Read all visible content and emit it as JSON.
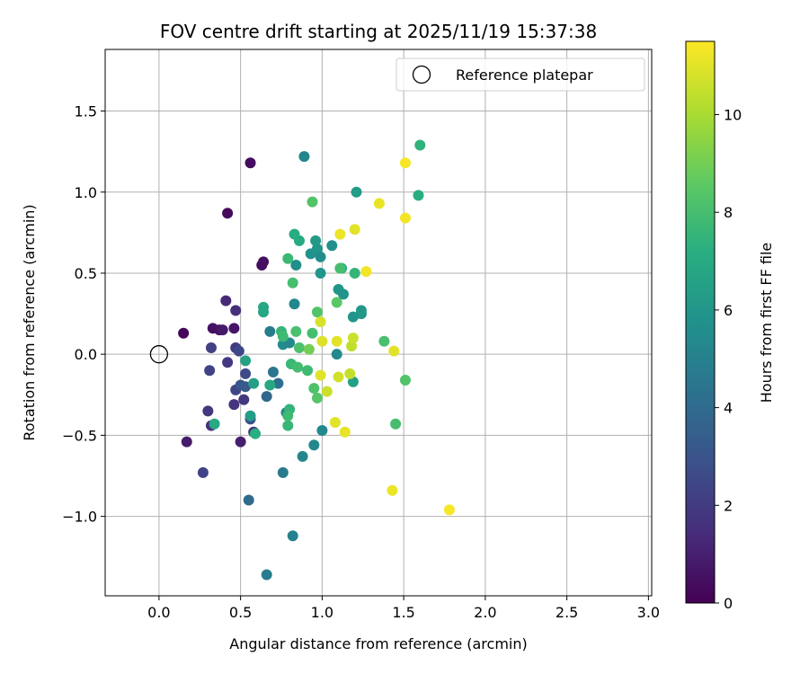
{
  "chart_data": {
    "type": "scatter",
    "title": "FOV centre drift starting at 2025/11/19 15:37:38",
    "xlabel": "Angular distance from reference (arcmin)",
    "ylabel": "Rotation from reference (arcmin)",
    "xlim": [
      -0.33,
      3.02
    ],
    "ylim": [
      -1.49,
      1.88
    ],
    "xticks": [
      0.0,
      0.5,
      1.0,
      1.5,
      2.0,
      2.5,
      3.0
    ],
    "xtick_labels": [
      "0.0",
      "0.5",
      "1.0",
      "1.5",
      "2.0",
      "2.5",
      "3.0"
    ],
    "yticks": [
      -1.0,
      -0.5,
      0.0,
      0.5,
      1.0,
      1.5
    ],
    "ytick_labels": [
      "−1.0",
      "−0.5",
      "0.0",
      "0.5",
      "1.0",
      "1.5"
    ],
    "grid": true,
    "colormap": "viridis",
    "colorbar": {
      "label": "Hours from first FF file",
      "range": [
        0,
        11.5
      ],
      "ticks": [
        0,
        2,
        4,
        6,
        8,
        10
      ],
      "tick_labels": [
        "0",
        "2",
        "4",
        "6",
        "8",
        "10"
      ]
    },
    "legend": {
      "position": "top-right",
      "entries": [
        "Reference platepar"
      ]
    },
    "reference": {
      "x": 0.0,
      "y": 0.0,
      "marker": "hollow-circle",
      "edge_color": "#000000"
    },
    "points": [
      {
        "x": 0.15,
        "y": 0.13,
        "h": 0.2
      },
      {
        "x": 0.42,
        "y": 0.87,
        "h": 0.3
      },
      {
        "x": 0.56,
        "y": 1.18,
        "h": 0.4
      },
      {
        "x": 0.63,
        "y": 0.55,
        "h": 0.4
      },
      {
        "x": 0.64,
        "y": 0.57,
        "h": 0.5
      },
      {
        "x": 0.33,
        "y": 0.16,
        "h": 0.5
      },
      {
        "x": 0.37,
        "y": 0.15,
        "h": 0.6
      },
      {
        "x": 0.39,
        "y": 0.15,
        "h": 0.8
      },
      {
        "x": 0.46,
        "y": 0.16,
        "h": 0.7
      },
      {
        "x": 0.17,
        "y": -0.54,
        "h": 0.9
      },
      {
        "x": 0.5,
        "y": -0.54,
        "h": 1.0
      },
      {
        "x": 0.41,
        "y": 0.33,
        "h": 1.3
      },
      {
        "x": 0.47,
        "y": 0.27,
        "h": 1.5
      },
      {
        "x": 0.32,
        "y": -0.44,
        "h": 1.6
      },
      {
        "x": 0.3,
        "y": -0.35,
        "h": 1.8
      },
      {
        "x": 0.42,
        "y": -0.05,
        "h": 1.9
      },
      {
        "x": 0.46,
        "y": -0.31,
        "h": 1.7
      },
      {
        "x": 0.52,
        "y": -0.28,
        "h": 1.8
      },
      {
        "x": 0.58,
        "y": -0.48,
        "h": 1.7
      },
      {
        "x": 0.47,
        "y": 0.04,
        "h": 2.0
      },
      {
        "x": 0.49,
        "y": 0.02,
        "h": 2.5
      },
      {
        "x": 0.32,
        "y": 0.04,
        "h": 2.2
      },
      {
        "x": 0.31,
        "y": -0.1,
        "h": 2.3
      },
      {
        "x": 0.47,
        "y": -0.22,
        "h": 2.4
      },
      {
        "x": 0.53,
        "y": -0.12,
        "h": 2.6
      },
      {
        "x": 0.27,
        "y": -0.73,
        "h": 2.3
      },
      {
        "x": 0.56,
        "y": -0.4,
        "h": 2.8
      },
      {
        "x": 0.5,
        "y": -0.19,
        "h": 3.0
      },
      {
        "x": 0.53,
        "y": -0.2,
        "h": 3.3
      },
      {
        "x": 0.66,
        "y": -0.26,
        "h": 3.8
      },
      {
        "x": 0.73,
        "y": -0.18,
        "h": 4.2
      },
      {
        "x": 0.7,
        "y": -0.11,
        "h": 4.5
      },
      {
        "x": 0.68,
        "y": 0.14,
        "h": 4.8
      },
      {
        "x": 0.55,
        "y": -0.9,
        "h": 4.0
      },
      {
        "x": 0.66,
        "y": -1.36,
        "h": 4.8
      },
      {
        "x": 0.82,
        "y": -1.12,
        "h": 5.0
      },
      {
        "x": 0.76,
        "y": -0.73,
        "h": 4.7
      },
      {
        "x": 0.88,
        "y": -0.63,
        "h": 5.2
      },
      {
        "x": 0.95,
        "y": -0.56,
        "h": 5.3
      },
      {
        "x": 1.0,
        "y": -0.47,
        "h": 5.4
      },
      {
        "x": 0.78,
        "y": -0.36,
        "h": 5.2
      },
      {
        "x": 0.76,
        "y": 0.06,
        "h": 5.5
      },
      {
        "x": 0.8,
        "y": 0.07,
        "h": 5.4
      },
      {
        "x": 0.83,
        "y": 0.31,
        "h": 5.3
      },
      {
        "x": 0.84,
        "y": 0.55,
        "h": 5.6
      },
      {
        "x": 0.89,
        "y": 1.22,
        "h": 5.2
      },
      {
        "x": 0.93,
        "y": 0.62,
        "h": 5.8
      },
      {
        "x": 0.97,
        "y": 0.65,
        "h": 6.0
      },
      {
        "x": 0.99,
        "y": 0.6,
        "h": 5.6
      },
      {
        "x": 0.99,
        "y": 0.5,
        "h": 6.0
      },
      {
        "x": 0.96,
        "y": 0.7,
        "h": 6.2
      },
      {
        "x": 1.06,
        "y": 0.67,
        "h": 5.7
      },
      {
        "x": 1.1,
        "y": 0.4,
        "h": 6.0
      },
      {
        "x": 1.13,
        "y": 0.37,
        "h": 5.9
      },
      {
        "x": 1.09,
        "y": 0.0,
        "h": 5.4
      },
      {
        "x": 1.19,
        "y": 0.23,
        "h": 5.9
      },
      {
        "x": 1.24,
        "y": 0.25,
        "h": 6.0
      },
      {
        "x": 1.24,
        "y": 0.27,
        "h": 6.1
      },
      {
        "x": 1.21,
        "y": 1.0,
        "h": 6.3
      },
      {
        "x": 1.19,
        "y": -0.17,
        "h": 6.5
      },
      {
        "x": 0.56,
        "y": -0.38,
        "h": 6.4
      },
      {
        "x": 0.53,
        "y": -0.04,
        "h": 6.6
      },
      {
        "x": 0.58,
        "y": -0.18,
        "h": 6.5
      },
      {
        "x": 0.64,
        "y": 0.26,
        "h": 6.8
      },
      {
        "x": 0.64,
        "y": 0.29,
        "h": 6.9
      },
      {
        "x": 0.68,
        "y": -0.19,
        "h": 6.9
      },
      {
        "x": 0.59,
        "y": -0.49,
        "h": 7.2
      },
      {
        "x": 0.34,
        "y": -0.43,
        "h": 7.0
      },
      {
        "x": 0.86,
        "y": 0.7,
        "h": 7.0
      },
      {
        "x": 0.83,
        "y": 0.74,
        "h": 7.1
      },
      {
        "x": 1.12,
        "y": 0.53,
        "h": 7.3
      },
      {
        "x": 1.2,
        "y": 0.5,
        "h": 7.5
      },
      {
        "x": 1.59,
        "y": 0.98,
        "h": 7.1
      },
      {
        "x": 1.6,
        "y": 1.29,
        "h": 7.4
      },
      {
        "x": 0.79,
        "y": 0.59,
        "h": 7.7
      },
      {
        "x": 0.75,
        "y": 0.14,
        "h": 7.6
      },
      {
        "x": 0.76,
        "y": 0.11,
        "h": 7.8
      },
      {
        "x": 0.8,
        "y": -0.34,
        "h": 7.5
      },
      {
        "x": 0.79,
        "y": -0.44,
        "h": 7.6
      },
      {
        "x": 0.79,
        "y": -0.38,
        "h": 7.8
      },
      {
        "x": 0.81,
        "y": -0.06,
        "h": 7.7
      },
      {
        "x": 0.85,
        "y": -0.08,
        "h": 7.9
      },
      {
        "x": 0.91,
        "y": -0.1,
        "h": 7.8
      },
      {
        "x": 0.82,
        "y": 0.44,
        "h": 8.0
      },
      {
        "x": 0.84,
        "y": 0.14,
        "h": 8.1
      },
      {
        "x": 0.86,
        "y": 0.04,
        "h": 8.2
      },
      {
        "x": 0.94,
        "y": 0.13,
        "h": 8.0
      },
      {
        "x": 0.97,
        "y": 0.26,
        "h": 8.3
      },
      {
        "x": 0.95,
        "y": -0.21,
        "h": 8.2
      },
      {
        "x": 0.97,
        "y": -0.27,
        "h": 8.4
      },
      {
        "x": 0.94,
        "y": 0.94,
        "h": 8.3
      },
      {
        "x": 1.09,
        "y": 0.32,
        "h": 8.5
      },
      {
        "x": 1.11,
        "y": 0.53,
        "h": 8.0
      },
      {
        "x": 1.38,
        "y": 0.08,
        "h": 8.1
      },
      {
        "x": 1.45,
        "y": -0.43,
        "h": 8.0
      },
      {
        "x": 1.51,
        "y": -0.16,
        "h": 8.3
      },
      {
        "x": 0.92,
        "y": 0.03,
        "h": 9.0
      },
      {
        "x": 0.99,
        "y": 0.2,
        "h": 10.8
      },
      {
        "x": 0.99,
        "y": -0.13,
        "h": 11.0
      },
      {
        "x": 1.0,
        "y": 0.08,
        "h": 10.9
      },
      {
        "x": 1.03,
        "y": -0.23,
        "h": 10.6
      },
      {
        "x": 1.08,
        "y": -0.42,
        "h": 11.0
      },
      {
        "x": 1.1,
        "y": -0.14,
        "h": 10.7
      },
      {
        "x": 1.09,
        "y": 0.08,
        "h": 11.0
      },
      {
        "x": 1.14,
        "y": -0.48,
        "h": 11.1
      },
      {
        "x": 1.17,
        "y": -0.12,
        "h": 10.5
      },
      {
        "x": 1.18,
        "y": 0.05,
        "h": 10.4
      },
      {
        "x": 1.19,
        "y": 0.1,
        "h": 10.6
      },
      {
        "x": 1.11,
        "y": 0.74,
        "h": 11.2
      },
      {
        "x": 1.2,
        "y": 0.77,
        "h": 11.0
      },
      {
        "x": 1.27,
        "y": 0.51,
        "h": 11.3
      },
      {
        "x": 1.35,
        "y": 0.93,
        "h": 11.1
      },
      {
        "x": 1.51,
        "y": 1.18,
        "h": 11.4
      },
      {
        "x": 1.51,
        "y": 0.84,
        "h": 11.3
      },
      {
        "x": 1.44,
        "y": 0.02,
        "h": 11.0
      },
      {
        "x": 1.43,
        "y": -0.84,
        "h": 11.2
      },
      {
        "x": 1.78,
        "y": -0.96,
        "h": 11.4
      }
    ]
  }
}
